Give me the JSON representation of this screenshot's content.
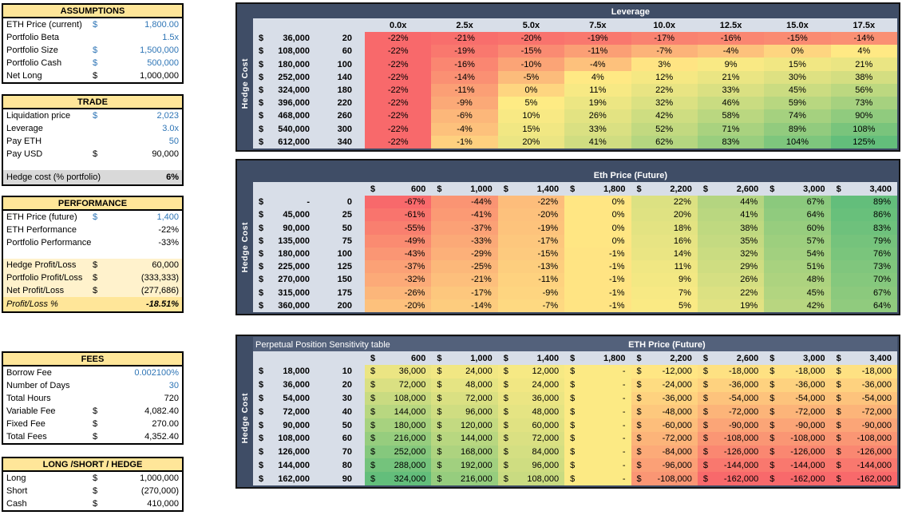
{
  "panels": [
    {
      "title": "ASSUMPTIONS",
      "rows": [
        {
          "label": "ETH Price (current)",
          "dollar": "$",
          "value": "1,800.00",
          "blue": true
        },
        {
          "label": "Portfolio Beta",
          "value": "1.5x",
          "blue": true
        },
        {
          "label": "Portfolio Size",
          "dollar": "$",
          "value": "1,500,000",
          "blue": true
        },
        {
          "label": "Portfolio Cash",
          "dollar": "$",
          "value": "500,000",
          "blue": true
        },
        {
          "label": "Net Long",
          "dollar": "$",
          "value": "1,000,000"
        }
      ]
    },
    {
      "title": "TRADE",
      "rows": [
        {
          "label": "Liquidation price",
          "dollar": "$",
          "value": "2,023",
          "blue": true
        },
        {
          "label": "Leverage",
          "value": "3.0x",
          "blue": true
        },
        {
          "label": "Pay ETH",
          "value": "50",
          "blue": true
        },
        {
          "label": "Pay USD",
          "dollar": "$",
          "value": "90,000"
        },
        {
          "spacer": true
        },
        {
          "label": "Hedge cost (% portfolio)",
          "value": "6%",
          "bg": "gray",
          "tall": true,
          "bold_value": true
        }
      ]
    },
    {
      "title": "PERFORMANCE",
      "rows": [
        {
          "label": "ETH Price (future)",
          "dollar": "$",
          "value": "1,400",
          "blue": true
        },
        {
          "label": "ETH Performance",
          "value": "-22%"
        },
        {
          "label": "Portfolio Performance",
          "value": "-33%"
        },
        {
          "spacer": true
        },
        {
          "label": "Hedge Profit/Loss",
          "dollar": "$",
          "value": "60,000",
          "bg": "cream"
        },
        {
          "label": "Portfolio Profit/Loss",
          "dollar": "$",
          "value": "(333,333)",
          "bg": "cream"
        },
        {
          "label": "Net Profit/Loss",
          "dollar": "$",
          "value": "(277,686)",
          "bg": "cream"
        },
        {
          "label": "Profit/Loss %",
          "value": "-18.51%",
          "bg": "gold",
          "italic": true,
          "bold_value": true,
          "tall": true
        }
      ]
    },
    {
      "title": "FEES",
      "rows": [
        {
          "label": "Borrow Fee",
          "value": "0.002100%",
          "blue": true
        },
        {
          "label": "Number of Days",
          "value": "30",
          "blue": true
        },
        {
          "label": "Total Hours",
          "value": "720"
        },
        {
          "label": "Variable Fee",
          "dollar": "$",
          "value": "4,082.40"
        },
        {
          "label": "Fixed Fee",
          "dollar": "$",
          "value": "270.00"
        },
        {
          "label": "Total Fees",
          "dollar": "$",
          "value": "4,352.40"
        }
      ]
    },
    {
      "title": "LONG /SHORT / HEDGE",
      "rows": [
        {
          "label": "Long",
          "dollar": "$",
          "value": "1,000,000"
        },
        {
          "label": "Short",
          "dollar": "$",
          "value": "(270,000)"
        },
        {
          "label": "Cash",
          "dollar": "$",
          "value": "410,000"
        }
      ]
    }
  ],
  "colors": {
    "scale_min_red": "#F8696B",
    "scale_mid_yellow": "#FFEB84",
    "scale_max_green": "#63BE7B",
    "navy": "#3F4D66",
    "label_area": "#D8DEE8",
    "panel_header": "#FFE699",
    "input_blue": "#2E75B6"
  },
  "heatmaps": [
    {
      "id": "leverage",
      "title": "Leverage",
      "side_label": "Hedge Cost",
      "col_type": "plain",
      "cell_format": "percent",
      "align": "center",
      "columns": [
        "0.0x",
        "2.5x",
        "5.0x",
        "7.5x",
        "10.0x",
        "12.5x",
        "15.0x",
        "17.5x"
      ],
      "rows": [
        [
          "36,000",
          "20"
        ],
        [
          "108,000",
          "60"
        ],
        [
          "180,000",
          "100"
        ],
        [
          "252,000",
          "140"
        ],
        [
          "324,000",
          "180"
        ],
        [
          "396,000",
          "220"
        ],
        [
          "468,000",
          "260"
        ],
        [
          "540,000",
          "300"
        ],
        [
          "612,000",
          "340"
        ]
      ],
      "values": [
        [
          -22,
          -21,
          -20,
          -19,
          -17,
          -16,
          -15,
          -14
        ],
        [
          -22,
          -19,
          -15,
          -11,
          -7,
          -4,
          0,
          4
        ],
        [
          -22,
          -16,
          -10,
          -4,
          3,
          9,
          15,
          21
        ],
        [
          -22,
          -14,
          -5,
          4,
          12,
          21,
          30,
          38
        ],
        [
          -22,
          -11,
          0,
          11,
          22,
          33,
          45,
          56
        ],
        [
          -22,
          -9,
          5,
          19,
          32,
          46,
          59,
          73
        ],
        [
          -22,
          -6,
          10,
          26,
          42,
          58,
          74,
          90
        ],
        [
          -22,
          -4,
          15,
          33,
          52,
          71,
          89,
          108
        ],
        [
          -22,
          -1,
          20,
          41,
          62,
          83,
          104,
          125
        ]
      ]
    },
    {
      "id": "eth-price-future",
      "title": "Eth Price (Future)",
      "side_label": "Hedge Cost",
      "col_type": "money",
      "cell_format": "percent",
      "align": "right",
      "columns": [
        "600",
        "1,000",
        "1,400",
        "1,800",
        "2,200",
        "2,600",
        "3,000",
        "3,400"
      ],
      "rows": [
        [
          "-",
          "0"
        ],
        [
          "45,000",
          "25"
        ],
        [
          "90,000",
          "50"
        ],
        [
          "135,000",
          "75"
        ],
        [
          "180,000",
          "100"
        ],
        [
          "225,000",
          "125"
        ],
        [
          "270,000",
          "150"
        ],
        [
          "315,000",
          "175"
        ],
        [
          "360,000",
          "200"
        ]
      ],
      "values": [
        [
          -67,
          -44,
          -22,
          0,
          22,
          44,
          67,
          89
        ],
        [
          -61,
          -41,
          -20,
          0,
          20,
          41,
          64,
          86
        ],
        [
          -55,
          -37,
          -19,
          0,
          18,
          38,
          60,
          83
        ],
        [
          -49,
          -33,
          -17,
          0,
          16,
          35,
          57,
          79
        ],
        [
          -43,
          -29,
          -15,
          -1,
          14,
          32,
          54,
          76
        ],
        [
          -37,
          -25,
          -13,
          -1,
          11,
          29,
          51,
          73
        ],
        [
          -32,
          -21,
          -11,
          -1,
          9,
          26,
          48,
          70
        ],
        [
          -26,
          -17,
          -9,
          -1,
          7,
          22,
          45,
          67
        ],
        [
          -20,
          -14,
          -7,
          -1,
          5,
          19,
          42,
          64
        ]
      ]
    },
    {
      "id": "perpetual-position-sensitivity",
      "title_left": "Perpetual Position Sensitivity table",
      "title": "ETH Price (Future)",
      "side_label": "Hedge Cost",
      "col_type": "money",
      "cell_format": "money",
      "columns": [
        "600",
        "1,000",
        "1,400",
        "1,800",
        "2,200",
        "2,600",
        "3,000",
        "3,400"
      ],
      "rows": [
        [
          "18,000",
          "10"
        ],
        [
          "36,000",
          "20"
        ],
        [
          "54,000",
          "30"
        ],
        [
          "72,000",
          "40"
        ],
        [
          "90,000",
          "50"
        ],
        [
          "108,000",
          "60"
        ],
        [
          "126,000",
          "70"
        ],
        [
          "144,000",
          "80"
        ],
        [
          "162,000",
          "90"
        ]
      ],
      "values": [
        [
          36000,
          24000,
          12000,
          0,
          -12000,
          -18000,
          -18000,
          -18000
        ],
        [
          72000,
          48000,
          24000,
          0,
          -24000,
          -36000,
          -36000,
          -36000
        ],
        [
          108000,
          72000,
          36000,
          0,
          -36000,
          -54000,
          -54000,
          -54000
        ],
        [
          144000,
          96000,
          48000,
          0,
          -48000,
          -72000,
          -72000,
          -72000
        ],
        [
          180000,
          120000,
          60000,
          0,
          -60000,
          -90000,
          -90000,
          -90000
        ],
        [
          216000,
          144000,
          72000,
          0,
          -72000,
          -108000,
          -108000,
          -108000
        ],
        [
          252000,
          168000,
          84000,
          0,
          -84000,
          -126000,
          -126000,
          -126000
        ],
        [
          288000,
          192000,
          96000,
          0,
          -96000,
          -144000,
          -144000,
          -144000
        ],
        [
          324000,
          216000,
          108000,
          0,
          -108000,
          -162000,
          -162000,
          -162000
        ]
      ]
    }
  ]
}
